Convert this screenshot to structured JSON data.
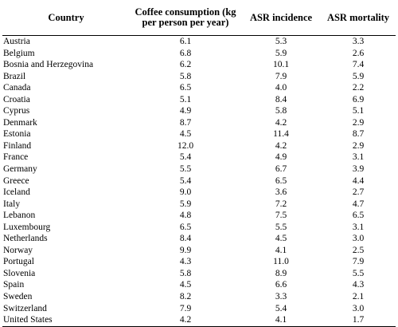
{
  "table": {
    "headers": {
      "country": "Country",
      "coffee": "Coffee consumption (kg per person per year)",
      "incidence": "ASR incidence",
      "mortality": "ASR mortality"
    },
    "rows": [
      {
        "country": "Austria",
        "coffee": "6.1",
        "incidence": "5.3",
        "mortality": "3.3"
      },
      {
        "country": "Belgium",
        "coffee": "6.8",
        "incidence": "5.9",
        "mortality": "2.6"
      },
      {
        "country": "Bosnia and Herzegovina",
        "coffee": "6.2",
        "incidence": "10.1",
        "mortality": "7.4"
      },
      {
        "country": "Brazil",
        "coffee": "5.8",
        "incidence": "7.9",
        "mortality": "5.9"
      },
      {
        "country": "Canada",
        "coffee": "6.5",
        "incidence": "4.0",
        "mortality": "2.2"
      },
      {
        "country": "Croatia",
        "coffee": "5.1",
        "incidence": "8.4",
        "mortality": "6.9"
      },
      {
        "country": "Cyprus",
        "coffee": "4.9",
        "incidence": "5.8",
        "mortality": "5.1"
      },
      {
        "country": "Denmark",
        "coffee": "8.7",
        "incidence": "4.2",
        "mortality": "2.9"
      },
      {
        "country": "Estonia",
        "coffee": "4.5",
        "incidence": "11.4",
        "mortality": "8.7"
      },
      {
        "country": "Finland",
        "coffee": "12.0",
        "incidence": "4.2",
        "mortality": "2.9"
      },
      {
        "country": "France",
        "coffee": "5.4",
        "incidence": "4.9",
        "mortality": "3.1"
      },
      {
        "country": "Germany",
        "coffee": "5.5",
        "incidence": "6.7",
        "mortality": "3.9"
      },
      {
        "country": "Greece",
        "coffee": "5.4",
        "incidence": "6.5",
        "mortality": "4.4"
      },
      {
        "country": "Iceland",
        "coffee": "9.0",
        "incidence": "3.6",
        "mortality": "2.7"
      },
      {
        "country": "Italy",
        "coffee": "5.9",
        "incidence": "7.2",
        "mortality": "4.7"
      },
      {
        "country": "Lebanon",
        "coffee": "4.8",
        "incidence": "7.5",
        "mortality": "6.5"
      },
      {
        "country": "Luxembourg",
        "coffee": "6.5",
        "incidence": "5.5",
        "mortality": "3.1"
      },
      {
        "country": "Netherlands",
        "coffee": "8.4",
        "incidence": "4.5",
        "mortality": "3.0"
      },
      {
        "country": "Norway",
        "coffee": "9.9",
        "incidence": "4.1",
        "mortality": "2.5"
      },
      {
        "country": "Portugal",
        "coffee": "4.3",
        "incidence": "11.0",
        "mortality": "7.9"
      },
      {
        "country": "Slovenia",
        "coffee": "5.8",
        "incidence": "8.9",
        "mortality": "5.5"
      },
      {
        "country": "Spain",
        "coffee": "4.5",
        "incidence": "6.6",
        "mortality": "4.3"
      },
      {
        "country": "Sweden",
        "coffee": "8.2",
        "incidence": "3.3",
        "mortality": "2.1"
      },
      {
        "country": "Switzerland",
        "coffee": "7.9",
        "incidence": "5.4",
        "mortality": "3.0"
      },
      {
        "country": "United States",
        "coffee": "4.2",
        "incidence": "4.1",
        "mortality": "1.7"
      }
    ]
  }
}
